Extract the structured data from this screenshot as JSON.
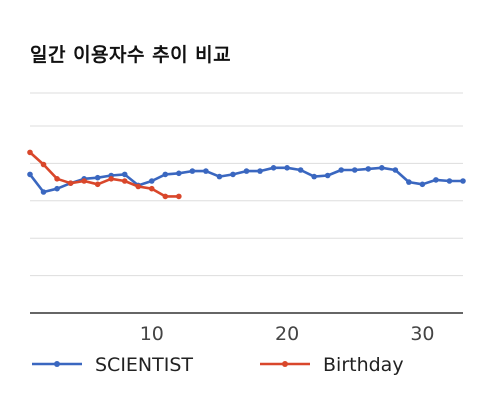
{
  "title": "일간 이용자수 추이 비교",
  "chart_data": {
    "type": "line",
    "title": "일간 이용자수 추이 비교",
    "xlabel": "",
    "ylabel": "",
    "xlim": [
      1,
      33
    ],
    "ylim": [
      0,
      10
    ],
    "grid": true,
    "x_ticks": [
      10,
      20,
      30
    ],
    "legend_position": "bottom",
    "series": [
      {
        "name": "SCIENTIST",
        "color": "#3a67c0",
        "x": [
          1,
          2,
          3,
          4,
          5,
          6,
          7,
          8,
          9,
          10,
          11,
          12,
          13,
          14,
          15,
          16,
          17,
          18,
          19,
          20,
          21,
          22,
          23,
          24,
          25,
          26,
          27,
          28,
          29,
          30,
          31,
          32,
          33
        ],
        "y": [
          6.3,
          5.5,
          5.65,
          5.9,
          6.1,
          6.15,
          6.25,
          6.3,
          5.8,
          6.0,
          6.3,
          6.35,
          6.45,
          6.45,
          6.2,
          6.3,
          6.45,
          6.45,
          6.6,
          6.6,
          6.5,
          6.2,
          6.25,
          6.5,
          6.5,
          6.55,
          6.6,
          6.5,
          5.95,
          5.85,
          6.05,
          6.0,
          6.0
        ]
      },
      {
        "name": "Birthday",
        "color": "#d9472b",
        "x": [
          1,
          2,
          3,
          4,
          5,
          6,
          7,
          8,
          9,
          10,
          11,
          12
        ],
        "y": [
          7.3,
          6.75,
          6.1,
          5.9,
          6.0,
          5.85,
          6.1,
          6.0,
          5.75,
          5.65,
          5.3,
          5.3
        ]
      }
    ]
  }
}
